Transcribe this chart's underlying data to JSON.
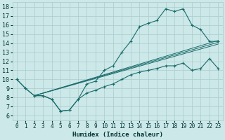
{
  "xlabel": "Humidex (Indice chaleur)",
  "xlim": [
    -0.5,
    23.5
  ],
  "ylim": [
    5.5,
    18.5
  ],
  "xticks": [
    0,
    1,
    2,
    3,
    4,
    5,
    6,
    7,
    8,
    9,
    10,
    11,
    12,
    13,
    14,
    15,
    16,
    17,
    18,
    19,
    20,
    21,
    22,
    23
  ],
  "yticks": [
    6,
    7,
    8,
    9,
    10,
    11,
    12,
    13,
    14,
    15,
    16,
    17,
    18
  ],
  "bg_color": "#cce8e8",
  "grid_color": "#aacccc",
  "line_color": "#1a6b6b",
  "main_curve_x": [
    0,
    1,
    2,
    3,
    4,
    5,
    6,
    7,
    8,
    9,
    10,
    11,
    12,
    13,
    14,
    15,
    16,
    17,
    18,
    19,
    20,
    21,
    22,
    23
  ],
  "main_curve_y": [
    10.0,
    9.0,
    8.2,
    8.2,
    7.8,
    6.5,
    6.6,
    7.8,
    9.5,
    9.8,
    11.0,
    11.5,
    13.0,
    14.2,
    15.8,
    16.2,
    16.5,
    17.8,
    17.5,
    17.8,
    16.0,
    15.5,
    14.2,
    14.2
  ],
  "lower_curve_x": [
    0,
    1,
    2,
    3,
    4,
    5,
    6,
    7,
    8,
    9,
    10,
    11,
    12,
    13,
    14,
    15,
    16,
    17,
    18,
    19,
    20,
    21,
    22,
    23
  ],
  "lower_curve_y": [
    10.0,
    9.0,
    8.2,
    8.2,
    7.8,
    6.5,
    6.6,
    7.8,
    8.5,
    8.8,
    9.2,
    9.5,
    10.0,
    10.5,
    10.8,
    11.0,
    11.2,
    11.5,
    11.5,
    11.8,
    11.0,
    11.2,
    12.3,
    11.2
  ],
  "trend1_x": [
    2,
    23
  ],
  "trend1_y": [
    8.2,
    14.1
  ],
  "trend2_x": [
    2,
    23
  ],
  "trend2_y": [
    8.2,
    14.3
  ],
  "trend3_x": [
    2,
    23
  ],
  "trend3_y": [
    8.2,
    13.9
  ]
}
